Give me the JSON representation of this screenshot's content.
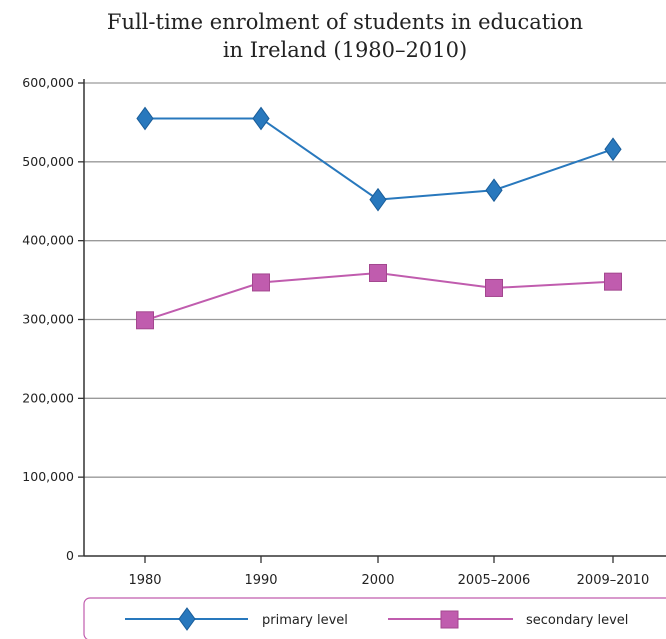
{
  "chart_data": {
    "type": "line",
    "title": "Full-time enrolment of students in education in Ireland (1980–2010)",
    "title_lines": [
      "Full-time enrolment of students in education",
      "in Ireland (1980–2010)"
    ],
    "categories": [
      "1980",
      "1990",
      "2000",
      "2005–2006",
      "2009–2010"
    ],
    "yticks": [
      "600,000",
      "500,000",
      "400,000",
      "300,000",
      "200,000",
      "100,000",
      "0"
    ],
    "ylim": [
      0,
      600000
    ],
    "grid": true,
    "legend_position": "bottom",
    "series": [
      {
        "name": "primary level",
        "marker": "diamond",
        "color": "#2878bd",
        "values": [
          555000,
          555000,
          452000,
          464000,
          516000
        ]
      },
      {
        "name": "secondary level",
        "marker": "square",
        "color": "#c05cae",
        "values": [
          299000,
          347000,
          359000,
          340000,
          348000
        ]
      }
    ]
  }
}
